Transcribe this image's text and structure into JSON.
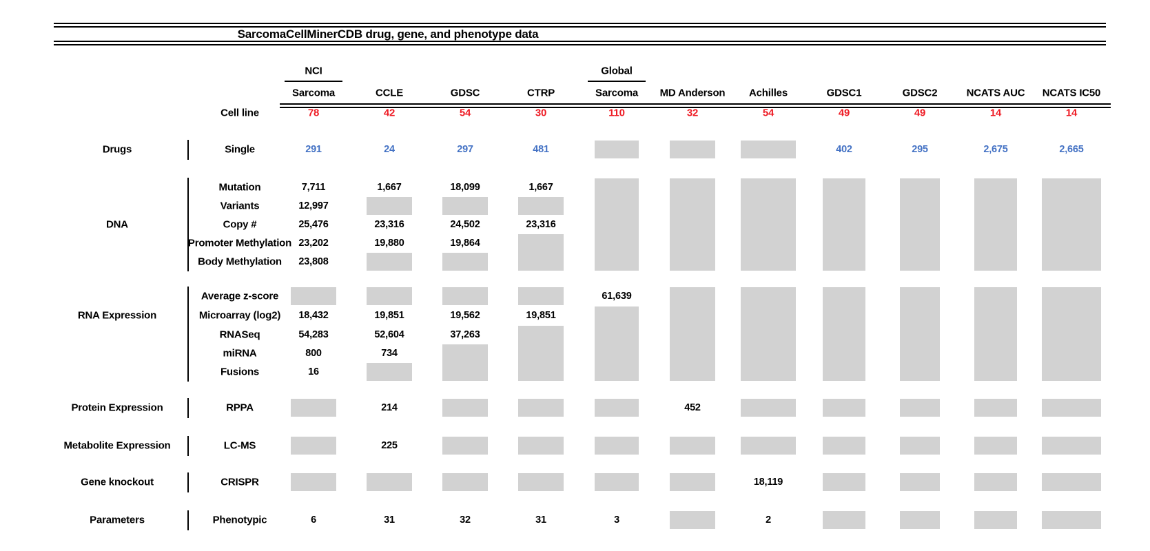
{
  "title": "SarcomaCellMinerCDB drug, gene, and phenotype data",
  "colors": {
    "red": "#ee1c25",
    "blue": "#4472c4",
    "box_gray": "#d2d2d2"
  },
  "cell_line_row": {
    "label": "Cell line"
  },
  "columns": [
    {
      "id": "nci-sarcoma",
      "top_label": "NCI",
      "label": "Sarcoma",
      "cell_lines": "78"
    },
    {
      "id": "ccle",
      "label": "CCLE",
      "cell_lines": "42"
    },
    {
      "id": "gdsc",
      "label": "GDSC",
      "cell_lines": "54"
    },
    {
      "id": "ctrp",
      "label": "CTRP",
      "cell_lines": "30"
    },
    {
      "id": "global-sarcoma",
      "top_label": "Global",
      "label": "Sarcoma",
      "cell_lines": "110"
    },
    {
      "id": "md-anderson",
      "label": "MD Anderson",
      "cell_lines": "32"
    },
    {
      "id": "achilles",
      "label": "Achilles",
      "cell_lines": "54"
    },
    {
      "id": "gdsc1",
      "label": "GDSC1",
      "cell_lines": "49"
    },
    {
      "id": "gdsc2",
      "label": "GDSC2",
      "cell_lines": "49"
    },
    {
      "id": "ncats-auc",
      "label": "NCATS AUC",
      "cell_lines": "14"
    },
    {
      "id": "ncats-ic50",
      "label": "NCATS IC50",
      "cell_lines": "14"
    }
  ],
  "sections": [
    {
      "category": "Drugs",
      "value_color": "blue",
      "rows": [
        {
          "label": "Single",
          "cells": [
            "291",
            "24",
            "297",
            "481",
            "#1",
            "#1",
            "#1",
            "402",
            "295",
            "2,675",
            "2,665"
          ]
        }
      ]
    },
    {
      "category": "DNA",
      "rows": [
        {
          "label": "Mutation",
          "cells": [
            "7,711",
            "1,667",
            "18,099",
            "1,667",
            "#5",
            "#5",
            "#5",
            "#5",
            "#5",
            "#5",
            "#5"
          ]
        },
        {
          "label": "Variants",
          "cells": [
            "12,997",
            "#1",
            "#1",
            "#1",
            "",
            "",
            "",
            "",
            "",
            "",
            ""
          ]
        },
        {
          "label": "Copy #",
          "cells": [
            "25,476",
            "23,316",
            "24,502",
            "23,316",
            "",
            "",
            "",
            "",
            "",
            "",
            ""
          ]
        },
        {
          "label": "Promoter Methylation",
          "cells": [
            "23,202",
            "19,880",
            "19,864",
            "#2",
            "",
            "",
            "",
            "",
            "",
            "",
            ""
          ]
        },
        {
          "label": "Body Methylation",
          "cells": [
            "23,808",
            "#1",
            "#1",
            "",
            "",
            "",
            "",
            "",
            "",
            "",
            ""
          ]
        }
      ]
    },
    {
      "category": "RNA Expression",
      "rows": [
        {
          "label": "Average z-score",
          "cells": [
            "#1",
            "#1",
            "#1",
            "#1",
            "61,639",
            "#5",
            "#5",
            "#5",
            "#5",
            "#5",
            "#5"
          ]
        },
        {
          "label": "Microarray (log2)",
          "cells": [
            "18,432",
            "19,851",
            "19,562",
            "19,851",
            "#4",
            "",
            "",
            "",
            "",
            "",
            ""
          ]
        },
        {
          "label": "RNASeq",
          "cells": [
            "54,283",
            "52,604",
            "37,263",
            "#3",
            "",
            "",
            "",
            "",
            "",
            "",
            ""
          ]
        },
        {
          "label": "miRNA",
          "cells": [
            "800",
            "734",
            "#2",
            "",
            "",
            "",
            "",
            "",
            "",
            "",
            ""
          ]
        },
        {
          "label": "Fusions",
          "cells": [
            "16",
            "#1",
            "",
            "",
            "",
            "",
            "",
            "",
            "",
            "",
            ""
          ]
        }
      ]
    },
    {
      "category": "Protein Expression",
      "rows": [
        {
          "label": "RPPA",
          "cells": [
            "#1",
            "214",
            "#1",
            "#1",
            "#1",
            "452",
            "#1",
            "#1",
            "#1",
            "#1",
            "#1"
          ]
        }
      ]
    },
    {
      "category": "Metabolite Expression",
      "rows": [
        {
          "label": "LC-MS",
          "cells": [
            "#1",
            "225",
            "#1",
            "#1",
            "#1",
            "#1",
            "#1",
            "#1",
            "#1",
            "#1",
            "#1"
          ]
        }
      ]
    },
    {
      "category": "Gene knockout",
      "rows": [
        {
          "label": "CRISPR",
          "cells": [
            "#1",
            "#1",
            "#1",
            "#1",
            "#1",
            "#1",
            "18,119",
            "#1",
            "#1",
            "#1",
            "#1"
          ]
        }
      ]
    },
    {
      "category": "Parameters",
      "rows": [
        {
          "label": "Phenotypic",
          "cells": [
            "6",
            "31",
            "32",
            "31",
            "3",
            "#1",
            "2",
            "#1",
            "#1",
            "#1",
            "#1"
          ]
        }
      ]
    }
  ]
}
